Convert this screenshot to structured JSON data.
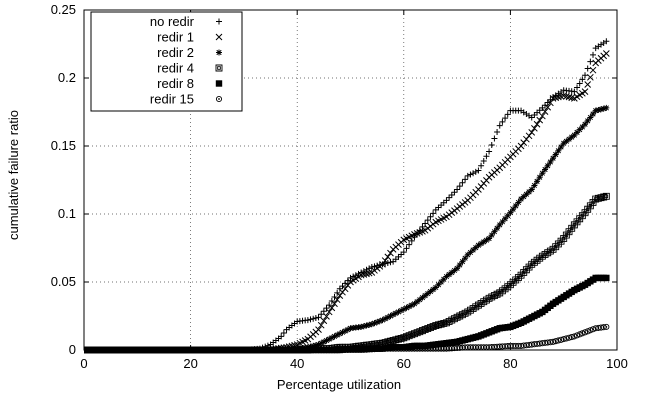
{
  "chart_data": {
    "type": "scatter",
    "title": "",
    "xlabel": "Percentage utilization",
    "ylabel": "cumulative failure ratio",
    "xlim": [
      0,
      100
    ],
    "ylim": [
      0,
      0.25
    ],
    "xticks": [
      0,
      20,
      40,
      60,
      80,
      100
    ],
    "yticks": [
      0,
      0.05,
      0.1,
      0.15,
      0.2,
      0.25
    ],
    "xtick_labels": [
      "0",
      "20",
      "40",
      "60",
      "80",
      "100"
    ],
    "ytick_labels": [
      "0",
      "0.05",
      "0.1",
      "0.15",
      "0.2",
      "0.25"
    ],
    "grid": "dotted",
    "legend_position": "top-left",
    "series": [
      {
        "name": "no redir",
        "marker": "plus",
        "points": [
          [
            0,
            0
          ],
          [
            30,
            0
          ],
          [
            33,
            0.001
          ],
          [
            35,
            0.004
          ],
          [
            37,
            0.01
          ],
          [
            38,
            0.015
          ],
          [
            40,
            0.021
          ],
          [
            42,
            0.022
          ],
          [
            44,
            0.024
          ],
          [
            46,
            0.033
          ],
          [
            48,
            0.045
          ],
          [
            50,
            0.053
          ],
          [
            52,
            0.057
          ],
          [
            54,
            0.061
          ],
          [
            56,
            0.063
          ],
          [
            58,
            0.065
          ],
          [
            60,
            0.072
          ],
          [
            62,
            0.083
          ],
          [
            64,
            0.093
          ],
          [
            66,
            0.103
          ],
          [
            68,
            0.11
          ],
          [
            70,
            0.118
          ],
          [
            72,
            0.128
          ],
          [
            74,
            0.132
          ],
          [
            76,
            0.146
          ],
          [
            78,
            0.165
          ],
          [
            80,
            0.176
          ],
          [
            82,
            0.176
          ],
          [
            84,
            0.171
          ],
          [
            86,
            0.178
          ],
          [
            88,
            0.186
          ],
          [
            90,
            0.191
          ],
          [
            92,
            0.19
          ],
          [
            94,
            0.202
          ],
          [
            96,
            0.222
          ],
          [
            98,
            0.227
          ]
        ]
      },
      {
        "name": "redir 1",
        "marker": "cross",
        "points": [
          [
            0,
            0
          ],
          [
            34,
            0
          ],
          [
            36,
            0.001
          ],
          [
            38,
            0.002
          ],
          [
            40,
            0.004
          ],
          [
            42,
            0.008
          ],
          [
            44,
            0.015
          ],
          [
            46,
            0.028
          ],
          [
            48,
            0.04
          ],
          [
            50,
            0.05
          ],
          [
            52,
            0.055
          ],
          [
            54,
            0.057
          ],
          [
            56,
            0.063
          ],
          [
            58,
            0.074
          ],
          [
            60,
            0.081
          ],
          [
            62,
            0.085
          ],
          [
            64,
            0.088
          ],
          [
            66,
            0.094
          ],
          [
            68,
            0.098
          ],
          [
            70,
            0.104
          ],
          [
            72,
            0.11
          ],
          [
            74,
            0.118
          ],
          [
            76,
            0.127
          ],
          [
            78,
            0.134
          ],
          [
            80,
            0.142
          ],
          [
            82,
            0.15
          ],
          [
            84,
            0.16
          ],
          [
            86,
            0.172
          ],
          [
            88,
            0.185
          ],
          [
            90,
            0.187
          ],
          [
            92,
            0.185
          ],
          [
            94,
            0.19
          ],
          [
            96,
            0.211
          ],
          [
            98,
            0.218
          ]
        ]
      },
      {
        "name": "redir 2",
        "marker": "star",
        "points": [
          [
            0,
            0
          ],
          [
            38,
            0
          ],
          [
            40,
            0.001
          ],
          [
            42,
            0.002
          ],
          [
            44,
            0.004
          ],
          [
            46,
            0.008
          ],
          [
            48,
            0.012
          ],
          [
            50,
            0.016
          ],
          [
            52,
            0.017
          ],
          [
            54,
            0.019
          ],
          [
            56,
            0.022
          ],
          [
            58,
            0.026
          ],
          [
            60,
            0.03
          ],
          [
            62,
            0.034
          ],
          [
            64,
            0.04
          ],
          [
            66,
            0.046
          ],
          [
            68,
            0.054
          ],
          [
            70,
            0.06
          ],
          [
            72,
            0.07
          ],
          [
            74,
            0.077
          ],
          [
            76,
            0.082
          ],
          [
            78,
            0.092
          ],
          [
            80,
            0.101
          ],
          [
            82,
            0.111
          ],
          [
            84,
            0.118
          ],
          [
            86,
            0.13
          ],
          [
            88,
            0.141
          ],
          [
            90,
            0.152
          ],
          [
            92,
            0.158
          ],
          [
            94,
            0.166
          ],
          [
            96,
            0.176
          ],
          [
            98,
            0.178
          ]
        ]
      },
      {
        "name": "redir 4",
        "marker": "square-open",
        "points": [
          [
            0,
            0
          ],
          [
            42,
            0
          ],
          [
            44,
            0.001
          ],
          [
            46,
            0.001
          ],
          [
            48,
            0.002
          ],
          [
            50,
            0.002
          ],
          [
            52,
            0.003
          ],
          [
            54,
            0.004
          ],
          [
            56,
            0.005
          ],
          [
            58,
            0.007
          ],
          [
            60,
            0.009
          ],
          [
            62,
            0.012
          ],
          [
            64,
            0.015
          ],
          [
            66,
            0.018
          ],
          [
            68,
            0.02
          ],
          [
            70,
            0.024
          ],
          [
            72,
            0.028
          ],
          [
            74,
            0.033
          ],
          [
            76,
            0.038
          ],
          [
            78,
            0.042
          ],
          [
            80,
            0.048
          ],
          [
            82,
            0.055
          ],
          [
            84,
            0.063
          ],
          [
            86,
            0.069
          ],
          [
            88,
            0.074
          ],
          [
            90,
            0.082
          ],
          [
            92,
            0.092
          ],
          [
            94,
            0.101
          ],
          [
            96,
            0.111
          ],
          [
            98,
            0.113
          ]
        ]
      },
      {
        "name": "redir 8",
        "marker": "square-filled",
        "points": [
          [
            0,
            0
          ],
          [
            48,
            0
          ],
          [
            50,
            0.001
          ],
          [
            52,
            0.001
          ],
          [
            54,
            0.001
          ],
          [
            56,
            0.001
          ],
          [
            58,
            0.002
          ],
          [
            60,
            0.002
          ],
          [
            62,
            0.003
          ],
          [
            64,
            0.003
          ],
          [
            66,
            0.004
          ],
          [
            68,
            0.005
          ],
          [
            70,
            0.006
          ],
          [
            72,
            0.008
          ],
          [
            74,
            0.01
          ],
          [
            76,
            0.013
          ],
          [
            78,
            0.016
          ],
          [
            80,
            0.017
          ],
          [
            82,
            0.02
          ],
          [
            84,
            0.024
          ],
          [
            86,
            0.028
          ],
          [
            88,
            0.034
          ],
          [
            90,
            0.039
          ],
          [
            92,
            0.044
          ],
          [
            94,
            0.048
          ],
          [
            96,
            0.053
          ],
          [
            98,
            0.053
          ]
        ]
      },
      {
        "name": "redir 15",
        "marker": "circle-open",
        "points": [
          [
            0,
            0
          ],
          [
            52,
            0
          ],
          [
            56,
            0.001
          ],
          [
            60,
            0.001
          ],
          [
            64,
            0.001
          ],
          [
            68,
            0.001
          ],
          [
            72,
            0.002
          ],
          [
            76,
            0.002
          ],
          [
            80,
            0.003
          ],
          [
            82,
            0.003
          ],
          [
            84,
            0.004
          ],
          [
            86,
            0.005
          ],
          [
            88,
            0.006
          ],
          [
            90,
            0.008
          ],
          [
            92,
            0.01
          ],
          [
            94,
            0.013
          ],
          [
            96,
            0.016
          ],
          [
            98,
            0.017
          ]
        ]
      }
    ]
  }
}
